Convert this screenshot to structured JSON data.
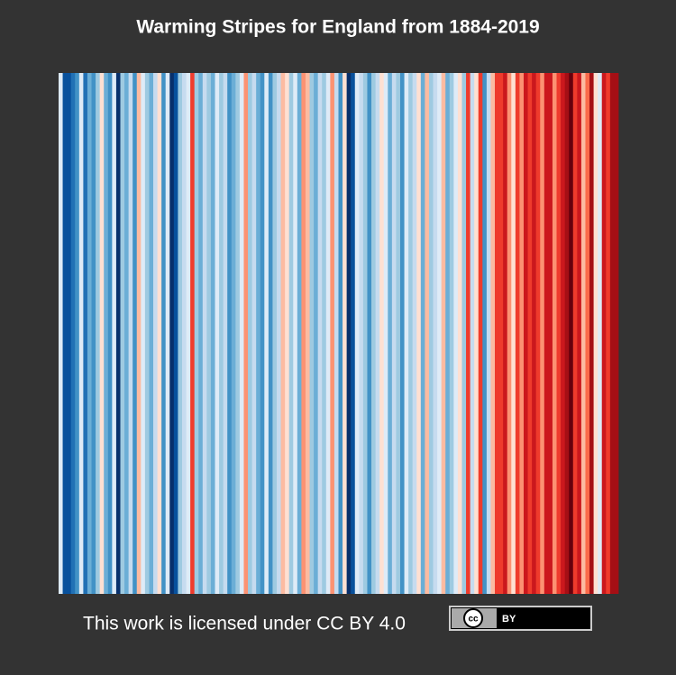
{
  "chart_data": {
    "type": "stripes",
    "title": "Warming Stripes for England from 1884-2019",
    "colors": [
      "#deebf7",
      "#08519c",
      "#08519c",
      "#2171b5",
      "#4292c6",
      "#deebf7",
      "#2171b5",
      "#6baed6",
      "#4292c6",
      "#9ecae1",
      "#fee0d2",
      "#6baed6",
      "#4292c6",
      "#deebf7",
      "#08306b",
      "#9ecae1",
      "#6baed6",
      "#c6dbef",
      "#4292c6",
      "#fcbba1",
      "#deebf7",
      "#9ecae1",
      "#6baed6",
      "#c6dbef",
      "#fee0d2",
      "#4292c6",
      "#deebf7",
      "#08306b",
      "#08519c",
      "#9ecae1",
      "#c6dbef",
      "#deebf7",
      "#ef3b2c",
      "#9ecae1",
      "#6baed6",
      "#c6dbef",
      "#9ecae1",
      "#6baed6",
      "#deebf7",
      "#9ecae1",
      "#c6dbef",
      "#4292c6",
      "#6baed6",
      "#9ecae1",
      "#deebf7",
      "#fc9272",
      "#9ecae1",
      "#c6dbef",
      "#6baed6",
      "#4292c6",
      "#deebf7",
      "#4292c6",
      "#9ecae1",
      "#c6dbef",
      "#fcbba1",
      "#fee0d2",
      "#9ecae1",
      "#deebf7",
      "#6baed6",
      "#fc9272",
      "#fcbba1",
      "#9ecae1",
      "#6baed6",
      "#c6dbef",
      "#9ecae1",
      "#deebf7",
      "#fc9272",
      "#c6dbef",
      "#4292c6",
      "#fee0d2",
      "#08306b",
      "#08519c",
      "#deebf7",
      "#c6dbef",
      "#9ecae1",
      "#4292c6",
      "#9ecae1",
      "#c6dbef",
      "#fee0d2",
      "#deebf7",
      "#6baed6",
      "#c6dbef",
      "#9ecae1",
      "#4292c6",
      "#deebf7",
      "#9ecae1",
      "#c6dbef",
      "#fee0d2",
      "#6baed6",
      "#fcbba1",
      "#9ecae1",
      "#c6dbef",
      "#deebf7",
      "#fcbba1",
      "#6baed6",
      "#9ecae1",
      "#deebf7",
      "#fee0d2",
      "#9ecae1",
      "#ef3b2c",
      "#c6dbef",
      "#fee0d2",
      "#ef3b2c",
      "#4292c6",
      "#c6dbef",
      "#fcbba1",
      "#ef3b2c",
      "#ef3b2c",
      "#cb181d",
      "#fc9272",
      "#fee0d2",
      "#ef3b2c",
      "#fc9272",
      "#cb181d",
      "#ef3b2c",
      "#cb181d",
      "#ef3b2c",
      "#fc9272",
      "#cb181d",
      "#cb181d",
      "#fc9272",
      "#ef3b2c",
      "#cb181d",
      "#a50f15",
      "#67000d",
      "#ef3b2c",
      "#cb181d",
      "#fcbba1",
      "#fb6a4a",
      "#a50f15",
      "#fee0d2",
      "#deebf7",
      "#cb181d",
      "#ef3b2c",
      "#a50f15",
      "#a50f15"
    ]
  },
  "footer": {
    "text": "This work is licensed under CC BY 4.0",
    "badge_icon": "cc",
    "badge_text": "BY"
  }
}
